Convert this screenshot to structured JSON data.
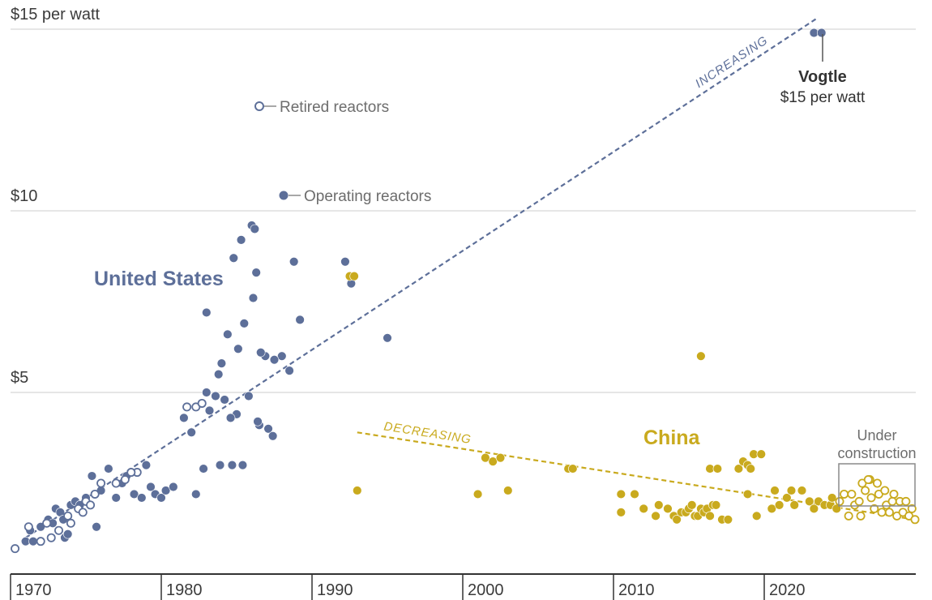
{
  "chart_data": {
    "type": "scatter",
    "x_ticks": [
      "1970",
      "1980",
      "1990",
      "2000",
      "2010",
      "2020"
    ],
    "x_tick_values": [
      1970,
      1980,
      1990,
      2000,
      2010,
      2020
    ],
    "y_ticks": [
      {
        "value": 5,
        "label": "$5"
      },
      {
        "value": 10,
        "label": "$10"
      },
      {
        "value": 15,
        "label": "$15 per watt"
      }
    ],
    "xlim": [
      1970,
      2028
    ],
    "ylim": [
      0,
      15.5
    ],
    "grid": "horizontal",
    "colors": {
      "us": "#5d6f99",
      "china": "#c9aa1e",
      "grid": "#dddddd",
      "axis": "#333333"
    },
    "series": [
      {
        "name": "United States",
        "group": "us",
        "status": "operating",
        "points": [
          [
            1971,
            0.9
          ],
          [
            1971.5,
            0.9
          ],
          [
            1971.3,
            1.2
          ],
          [
            1972,
            1.3
          ],
          [
            1972.5,
            1.5
          ],
          [
            1972.8,
            1.4
          ],
          [
            1973,
            1.8
          ],
          [
            1973.3,
            1.7
          ],
          [
            1973.5,
            1.5
          ],
          [
            1973.6,
            1.0
          ],
          [
            1973.8,
            1.1
          ],
          [
            1974,
            1.9
          ],
          [
            1974.3,
            2.0
          ],
          [
            1974.6,
            1.9
          ],
          [
            1975,
            2.1
          ],
          [
            1975.4,
            2.7
          ],
          [
            1975.7,
            1.3
          ],
          [
            1976,
            2.3
          ],
          [
            1976.5,
            2.9
          ],
          [
            1977,
            2.1
          ],
          [
            1977.4,
            2.5
          ],
          [
            1977.7,
            2.7
          ],
          [
            1978.2,
            2.2
          ],
          [
            1978.7,
            2.1
          ],
          [
            1979,
            3.0
          ],
          [
            1979.3,
            2.4
          ],
          [
            1979.6,
            2.2
          ],
          [
            1980,
            2.1
          ],
          [
            1980.3,
            2.3
          ],
          [
            1980.8,
            2.4
          ],
          [
            1981.5,
            4.3
          ],
          [
            1982,
            3.9
          ],
          [
            1982.3,
            2.2
          ],
          [
            1982.8,
            2.9
          ],
          [
            1983,
            7.2
          ],
          [
            1983,
            5.0
          ],
          [
            1983.2,
            4.5
          ],
          [
            1983.6,
            4.9
          ],
          [
            1983.8,
            5.5
          ],
          [
            1984,
            5.8
          ],
          [
            1984.4,
            6.6
          ],
          [
            1984.8,
            8.7
          ],
          [
            1985,
            4.4
          ],
          [
            1985.3,
            9.2
          ],
          [
            1985.8,
            4.9
          ],
          [
            1985.5,
            6.9
          ],
          [
            1986.1,
            7.6
          ],
          [
            1986,
            9.6
          ],
          [
            1986.2,
            9.5
          ],
          [
            1986.3,
            8.3
          ],
          [
            1986.9,
            6.0
          ],
          [
            1987.1,
            4.0
          ],
          [
            1987.4,
            3.8
          ],
          [
            1988,
            6.0
          ],
          [
            1988.5,
            5.6
          ],
          [
            1988.8,
            8.6
          ],
          [
            1989.2,
            7.0
          ],
          [
            1985.1,
            6.2
          ],
          [
            1984.2,
            4.8
          ],
          [
            1983.9,
            3.0
          ],
          [
            1984.7,
            3.0
          ],
          [
            1985.4,
            3.0
          ],
          [
            1986.5,
            4.1
          ],
          [
            1986.6,
            6.1
          ],
          [
            1984.6,
            4.3
          ],
          [
            1992.2,
            8.6
          ],
          [
            1995,
            6.5
          ],
          [
            1992.6,
            8.0
          ],
          [
            1987.5,
            5.9
          ],
          [
            1986.4,
            4.2
          ]
        ]
      },
      {
        "name": "United States",
        "group": "us",
        "status": "retired",
        "points": [
          [
            1970.3,
            0.7
          ],
          [
            1971.2,
            1.3
          ],
          [
            1972,
            0.9
          ],
          [
            1972.7,
            1.0
          ],
          [
            1973.2,
            1.2
          ],
          [
            1973.8,
            1.6
          ],
          [
            1974,
            1.4
          ],
          [
            1974.5,
            1.8
          ],
          [
            1974.8,
            1.7
          ],
          [
            1975,
            2.0
          ],
          [
            1975.3,
            1.9
          ],
          [
            1975.6,
            2.2
          ],
          [
            1976,
            2.5
          ],
          [
            1977,
            2.5
          ],
          [
            1977.6,
            2.6
          ],
          [
            1978.4,
            2.8
          ],
          [
            1982.3,
            4.6
          ],
          [
            1982.7,
            4.7
          ],
          [
            1981.7,
            4.6
          ],
          [
            1978,
            2.8
          ],
          [
            1972.4,
            1.4
          ]
        ]
      },
      {
        "name": "China",
        "group": "china",
        "status": "operating",
        "points": [
          [
            1992.5,
            8.2
          ],
          [
            1992.8,
            8.2
          ],
          [
            1993,
            2.3
          ],
          [
            2001,
            2.2
          ],
          [
            2001.5,
            3.2
          ],
          [
            2002,
            3.1
          ],
          [
            2002.5,
            3.2
          ],
          [
            2003,
            2.3
          ],
          [
            2007,
            2.9
          ],
          [
            2007.3,
            2.9
          ],
          [
            2010.5,
            1.7
          ],
          [
            2010.5,
            2.2
          ],
          [
            2011.4,
            2.2
          ],
          [
            2012,
            1.8
          ],
          [
            2013,
            1.9
          ],
          [
            2013.6,
            1.8
          ],
          [
            2014,
            1.6
          ],
          [
            2014.2,
            1.5
          ],
          [
            2014.5,
            1.7
          ],
          [
            2014.8,
            1.7
          ],
          [
            2015,
            1.8
          ],
          [
            2015.2,
            1.9
          ],
          [
            2015.4,
            1.6
          ],
          [
            2015.6,
            1.6
          ],
          [
            2015.8,
            1.8
          ],
          [
            2016,
            1.7
          ],
          [
            2016.2,
            1.8
          ],
          [
            2016.4,
            1.6
          ],
          [
            2016.6,
            1.9
          ],
          [
            2016.8,
            1.9
          ],
          [
            2016.4,
            2.9
          ],
          [
            2016.9,
            2.9
          ],
          [
            2017.2,
            1.5
          ],
          [
            2017.6,
            1.5
          ],
          [
            2018.3,
            2.9
          ],
          [
            2018.6,
            3.1
          ],
          [
            2018.9,
            3.0
          ],
          [
            2019.1,
            2.9
          ],
          [
            2019.3,
            3.3
          ],
          [
            2019.8,
            3.3
          ],
          [
            2018.9,
            2.2
          ],
          [
            2019.5,
            1.6
          ],
          [
            2020.5,
            1.8
          ],
          [
            2021,
            1.9
          ],
          [
            2021.5,
            2.1
          ],
          [
            2021.8,
            2.3
          ],
          [
            2022,
            1.9
          ],
          [
            2022.5,
            2.3
          ],
          [
            2023,
            2.0
          ],
          [
            2023.3,
            1.8
          ],
          [
            2023.6,
            2.0
          ],
          [
            2024,
            1.9
          ],
          [
            2024.4,
            1.9
          ],
          [
            2024.5,
            2.1
          ],
          [
            2024.8,
            1.8
          ],
          [
            2020.7,
            2.3
          ],
          [
            2012.8,
            1.6
          ],
          [
            2015.8,
            6.0
          ]
        ]
      },
      {
        "name": "China",
        "group": "china",
        "status": "under_construction",
        "points": [
          [
            2025,
            2.0
          ],
          [
            2025.3,
            2.2
          ],
          [
            2025.6,
            1.6
          ],
          [
            2025.8,
            2.2
          ],
          [
            2026,
            1.9
          ],
          [
            2026.3,
            2.0
          ],
          [
            2026.5,
            2.5
          ],
          [
            2026.7,
            2.3
          ],
          [
            2027,
            2.6
          ],
          [
            2027.1,
            2.1
          ],
          [
            2027.3,
            1.8
          ],
          [
            2027.5,
            2.5
          ],
          [
            2027.6,
            2.2
          ],
          [
            2027.8,
            1.7
          ],
          [
            2028,
            2.3
          ],
          [
            2028.1,
            1.9
          ],
          [
            2028.3,
            1.7
          ],
          [
            2028.5,
            2.0
          ],
          [
            2028.6,
            2.2
          ],
          [
            2028.8,
            1.6
          ],
          [
            2029,
            2.0
          ],
          [
            2029.2,
            1.7
          ],
          [
            2029.4,
            2.0
          ],
          [
            2029.6,
            1.6
          ],
          [
            2029.8,
            1.8
          ],
          [
            2030,
            1.5
          ],
          [
            2026.4,
            1.6
          ],
          [
            2026.9,
            2.6
          ]
        ]
      },
      {
        "name": "Vogtle",
        "group": "us",
        "status": "operating",
        "points": [
          [
            2023.3,
            14.9
          ],
          [
            2023.8,
            14.9
          ]
        ]
      }
    ],
    "trend_lines": [
      {
        "label": "INCREASING",
        "group": "us",
        "from": [
          1971,
          1.0
        ],
        "to": [
          2023.5,
          15.3
        ]
      },
      {
        "label": "DECREASING",
        "group": "china",
        "from": [
          1993,
          3.9
        ],
        "to": [
          2030,
          1.5
        ]
      }
    ],
    "annotations": {
      "united_states": "United States",
      "china": "China",
      "legend_retired": "Retired reactors",
      "legend_operating": "Operating reactors",
      "vogtle_name": "Vogtle",
      "vogtle_value": "$15 per watt",
      "under_construction_line1": "Under",
      "under_construction_line2": "construction"
    }
  }
}
